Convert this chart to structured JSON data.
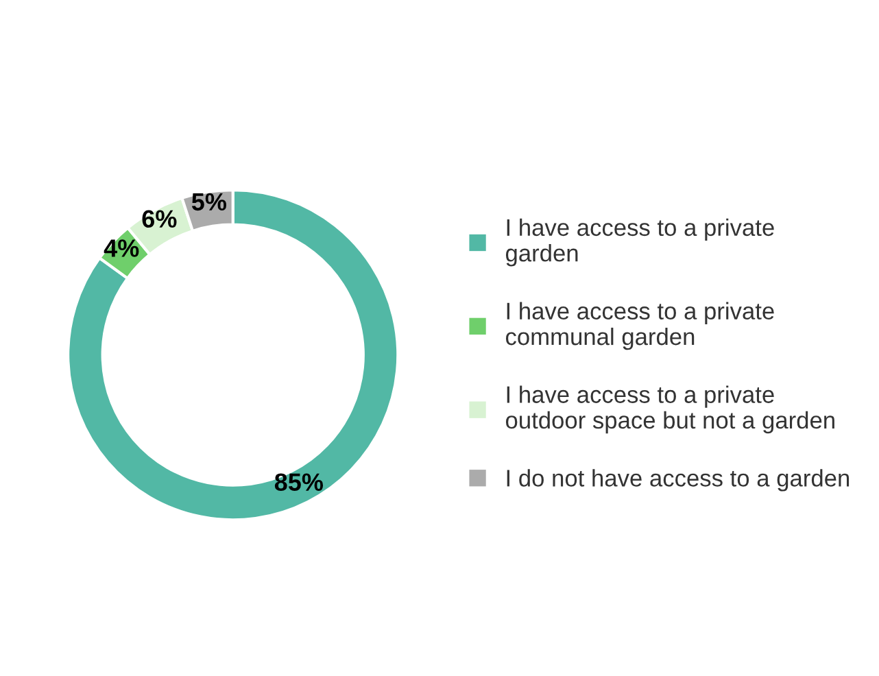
{
  "chart_data": {
    "type": "donut",
    "categories": [
      "I have access to a private\ngarden",
      "I have access to a private\ncommunal garden",
      "I have access to a private\noutdoor space but not a garden",
      "I do not have access to a garden"
    ],
    "values": [
      85,
      4,
      6,
      5
    ],
    "colors": [
      "#52b8a5",
      "#6fcf6b",
      "#d8f2d2",
      "#ababab"
    ],
    "value_labels": [
      "85%",
      "4%",
      "6%",
      "5%"
    ],
    "legend": "right"
  }
}
